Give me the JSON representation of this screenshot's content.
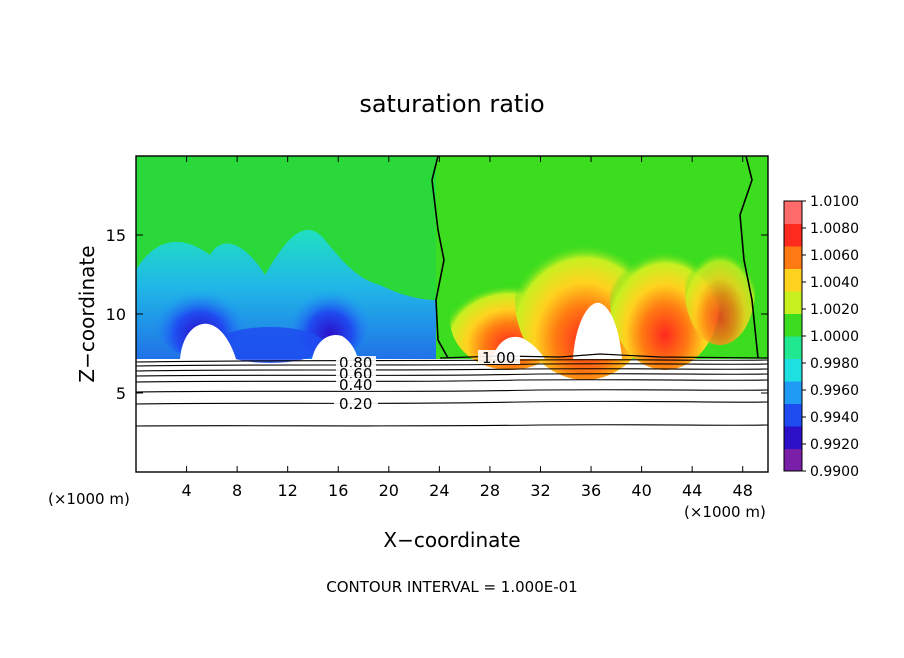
{
  "chart_data": {
    "type": "heatmap",
    "title": "saturation ratio",
    "xlabel": "X−coordinate",
    "ylabel": "Z−coordinate",
    "x_unit_left": "(×1000 m)",
    "x_unit_right": "(×1000 m)",
    "xlim": [
      0,
      50
    ],
    "ylim": [
      0,
      20
    ],
    "x_ticks": [
      4,
      8,
      12,
      16,
      20,
      24,
      28,
      32,
      36,
      40,
      44,
      48
    ],
    "y_ticks": [
      5,
      10,
      15
    ],
    "colorbar": {
      "levels": [
        0.99,
        0.992,
        0.994,
        0.996,
        0.998,
        1.0,
        1.002,
        1.004,
        1.006,
        1.008,
        1.01
      ],
      "labels": [
        "1.0100",
        "1.0080",
        "1.0060",
        "1.0040",
        "1.0020",
        "1.0000",
        "0.9980",
        "0.9960",
        "0.9940",
        "0.9920",
        "0.9900"
      ],
      "colors": [
        "#7a1fa8",
        "#2b10c8",
        "#1f4cf0",
        "#1f9af5",
        "#1fe0e0",
        "#1fe890",
        "#3cdc1f",
        "#c8f020",
        "#ffd21f",
        "#ff7a12",
        "#ff2a1e",
        "#ff6a6a"
      ]
    },
    "contour_labels": [
      "1.00",
      "0.80",
      "0.60",
      "0.40",
      "0.20"
    ],
    "contour_interval_text": "CONTOUR INTERVAL = 1.000E-01"
  }
}
